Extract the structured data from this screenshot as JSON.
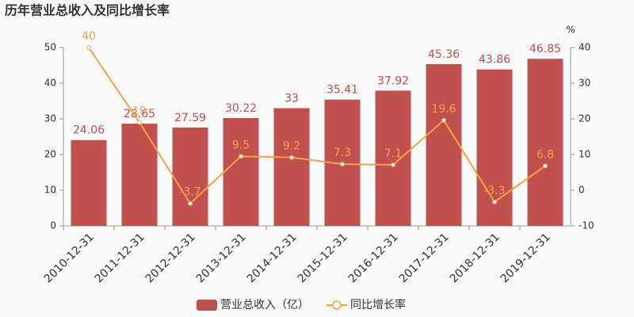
{
  "chart_data": {
    "type": "bar",
    "title": "历年营业总收入及同比增长率",
    "y2label": "%",
    "categories": [
      "2010-12-31",
      "2011-12-31",
      "2012-12-31",
      "2013-12-31",
      "2014-12-31",
      "2015-12-31",
      "2016-12-31",
      "2017-12-31",
      "2018-12-31",
      "2019-12-31"
    ],
    "series": [
      {
        "name": "营业总收入（亿）",
        "type": "bar",
        "color": "#c0504d",
        "values": [
          24.06,
          28.65,
          27.59,
          30.22,
          33,
          35.41,
          37.92,
          45.36,
          43.86,
          46.85
        ]
      },
      {
        "name": "同比增长率",
        "type": "line",
        "axis": "y2",
        "color": "#f4a04c",
        "values": [
          40,
          19,
          -3.7,
          9.5,
          9.2,
          7.3,
          7.1,
          19.6,
          -3.3,
          6.8
        ]
      }
    ],
    "ylim": [
      0,
      50
    ],
    "yticks": [
      0,
      10,
      20,
      30,
      40,
      50
    ],
    "y2lim": [
      -10,
      40
    ],
    "y2ticks": [
      -10,
      0,
      10,
      20,
      30,
      40
    ],
    "grid": false
  }
}
